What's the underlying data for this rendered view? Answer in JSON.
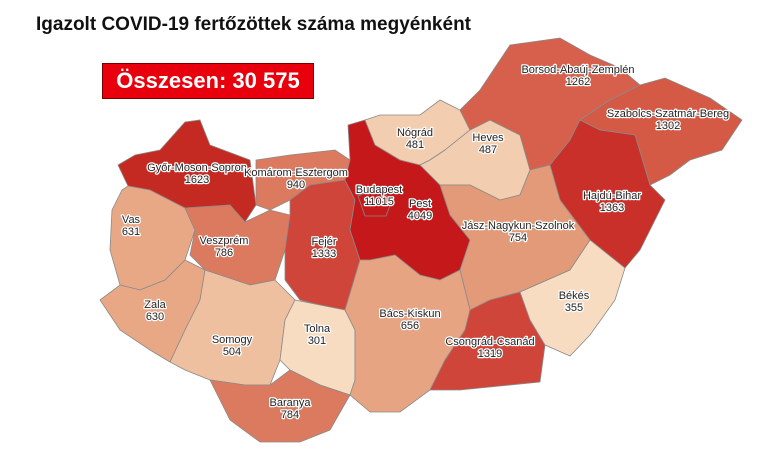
{
  "title": "Igazolt COVID-19 fertőzöttek száma megyénként",
  "total_label": "Összesen: 30 575 fő",
  "colors": {
    "total_box": "#e8000c",
    "scale": [
      "#f8dcc2",
      "#efc0a0",
      "#e4997a",
      "#dc7a60",
      "#d25a46",
      "#c9302a",
      "#c4181a"
    ]
  },
  "counties": [
    {
      "id": "gyor",
      "name": "Győr-Moson-Sopron",
      "value": "1623",
      "color": "#c42a22"
    },
    {
      "id": "komarom",
      "name": "Komárom-Esztergom",
      "value": "940",
      "color": "#dc7a60"
    },
    {
      "id": "vas",
      "name": "Vas",
      "value": "631",
      "color": "#e8a886"
    },
    {
      "id": "veszprem",
      "name": "Veszprém",
      "value": "786",
      "color": "#dc7a60"
    },
    {
      "id": "fejer",
      "name": "Fejér",
      "value": "1333",
      "color": "#d0453a"
    },
    {
      "id": "zala",
      "name": "Zala",
      "value": "630",
      "color": "#e8a886"
    },
    {
      "id": "somogy",
      "name": "Somogy",
      "value": "504",
      "color": "#efc0a0"
    },
    {
      "id": "tolna",
      "name": "Tolna",
      "value": "301",
      "color": "#f8dcc2"
    },
    {
      "id": "baranya",
      "name": "Baranya",
      "value": "784",
      "color": "#dc7a60"
    },
    {
      "id": "pest",
      "name": "Pest",
      "value": "4049",
      "color": "#c4181a"
    },
    {
      "id": "budapest",
      "name": "Budapest",
      "value": "11015",
      "color": "#c4181a"
    },
    {
      "id": "nograd",
      "name": "Nógrád",
      "value": "481",
      "color": "#f3cdaf"
    },
    {
      "id": "heves",
      "name": "Heves",
      "value": "487",
      "color": "#f3cdaf"
    },
    {
      "id": "borsod",
      "name": "Borsod-Abaúj-Zemplén",
      "value": "1262",
      "color": "#d6604b"
    },
    {
      "id": "szabolcs",
      "name": "Szabolcs-Szatmár-Bereg",
      "value": "1302",
      "color": "#d45a46"
    },
    {
      "id": "hajdu",
      "name": "Hajdú-Bihar",
      "value": "1363",
      "color": "#c9302a"
    },
    {
      "id": "jasz",
      "name": "Jász-Nagykun-Szolnok",
      "value": "754",
      "color": "#e29a78"
    },
    {
      "id": "bacs",
      "name": "Bács-Kiskun",
      "value": "656",
      "color": "#e6a482"
    },
    {
      "id": "csongrad",
      "name": "Csongrád-Csanád",
      "value": "1319",
      "color": "#d0453a"
    },
    {
      "id": "bekes",
      "name": "Békés",
      "value": "355",
      "color": "#f8dcc2"
    }
  ]
}
